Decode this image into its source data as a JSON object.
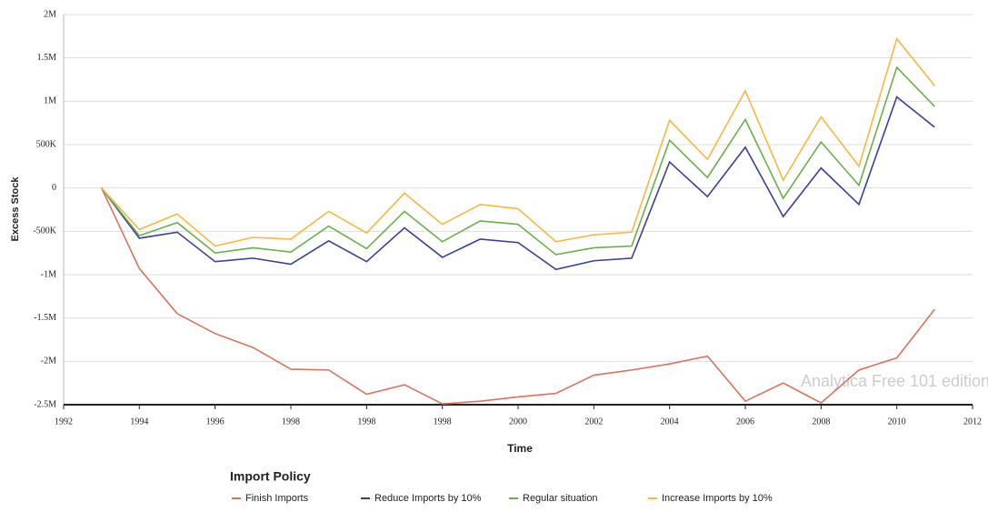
{
  "chart_data": {
    "type": "line",
    "xlabel": "Time",
    "ylabel": "Excess Stock",
    "legend_title": "Import Policy",
    "annotation": "Analytica Free 101 edition",
    "xlim": [
      0,
      24
    ],
    "xticks": [
      {
        "value": 0,
        "label": "1992"
      },
      {
        "value": 2,
        "label": "1994"
      },
      {
        "value": 4,
        "label": "1996"
      },
      {
        "value": 6,
        "label": "1998"
      },
      {
        "value": 8,
        "label": "1998"
      },
      {
        "value": 10,
        "label": "1998"
      },
      {
        "value": 12,
        "label": "2000"
      },
      {
        "value": 14,
        "label": "2002"
      },
      {
        "value": 16,
        "label": "2004"
      },
      {
        "value": 18,
        "label": "2006"
      },
      {
        "value": 20,
        "label": "2008"
      },
      {
        "value": 22,
        "label": "2010"
      },
      {
        "value": 24,
        "label": "2012"
      }
    ],
    "ylim": [
      -2500000,
      2000000
    ],
    "yticks": [
      {
        "value": -2500000,
        "label": "-2.5M"
      },
      {
        "value": -2000000,
        "label": "-2M"
      },
      {
        "value": -1500000,
        "label": "-1.5M"
      },
      {
        "value": -1000000,
        "label": "-1M"
      },
      {
        "value": -500000,
        "label": "-500K"
      },
      0,
      {
        "value": 500000,
        "label": "500K"
      },
      {
        "value": 1000000,
        "label": "1M"
      },
      {
        "value": 1500000,
        "label": "1.5M"
      },
      {
        "value": 2000000,
        "label": "2M"
      }
    ],
    "grid": true,
    "x": [
      1,
      2,
      3,
      4,
      5,
      6,
      7,
      8,
      9,
      10,
      11,
      12,
      13,
      14,
      15,
      16,
      17,
      18,
      19,
      20,
      21,
      22,
      23
    ],
    "series": [
      {
        "name": "Finish Imports",
        "color": "#d9735e",
        "values": [
          0,
          -930000,
          -1450000,
          -1680000,
          -1840000,
          -2090000,
          -2100000,
          -2380000,
          -2270000,
          -2490000,
          -2460000,
          -2410000,
          -2370000,
          -2160000,
          -2100000,
          -2030000,
          -1940000,
          -2460000,
          -2250000,
          -2480000,
          -2100000,
          -1960000,
          -1400000
        ]
      },
      {
        "name": "Reduce Imports by 10%",
        "color": "#3b3f9c",
        "values": [
          0,
          -580000,
          -510000,
          -850000,
          -810000,
          -880000,
          -610000,
          -850000,
          -460000,
          -800000,
          -590000,
          -630000,
          -940000,
          -840000,
          -810000,
          300000,
          -100000,
          470000,
          -330000,
          230000,
          -190000,
          1050000,
          700000
        ]
      },
      {
        "name": "Regular situation",
        "color": "#6ab04c",
        "values": [
          0,
          -550000,
          -400000,
          -750000,
          -690000,
          -740000,
          -440000,
          -700000,
          -270000,
          -620000,
          -380000,
          -420000,
          -770000,
          -690000,
          -670000,
          550000,
          120000,
          790000,
          -120000,
          530000,
          30000,
          1390000,
          940000
        ]
      },
      {
        "name": "Increase Imports by 10%",
        "color": "#f5b942",
        "values": [
          0,
          -480000,
          -300000,
          -670000,
          -570000,
          -590000,
          -270000,
          -520000,
          -60000,
          -420000,
          -190000,
          -240000,
          -620000,
          -540000,
          -510000,
          780000,
          330000,
          1120000,
          90000,
          820000,
          250000,
          1720000,
          1180000
        ]
      }
    ]
  }
}
